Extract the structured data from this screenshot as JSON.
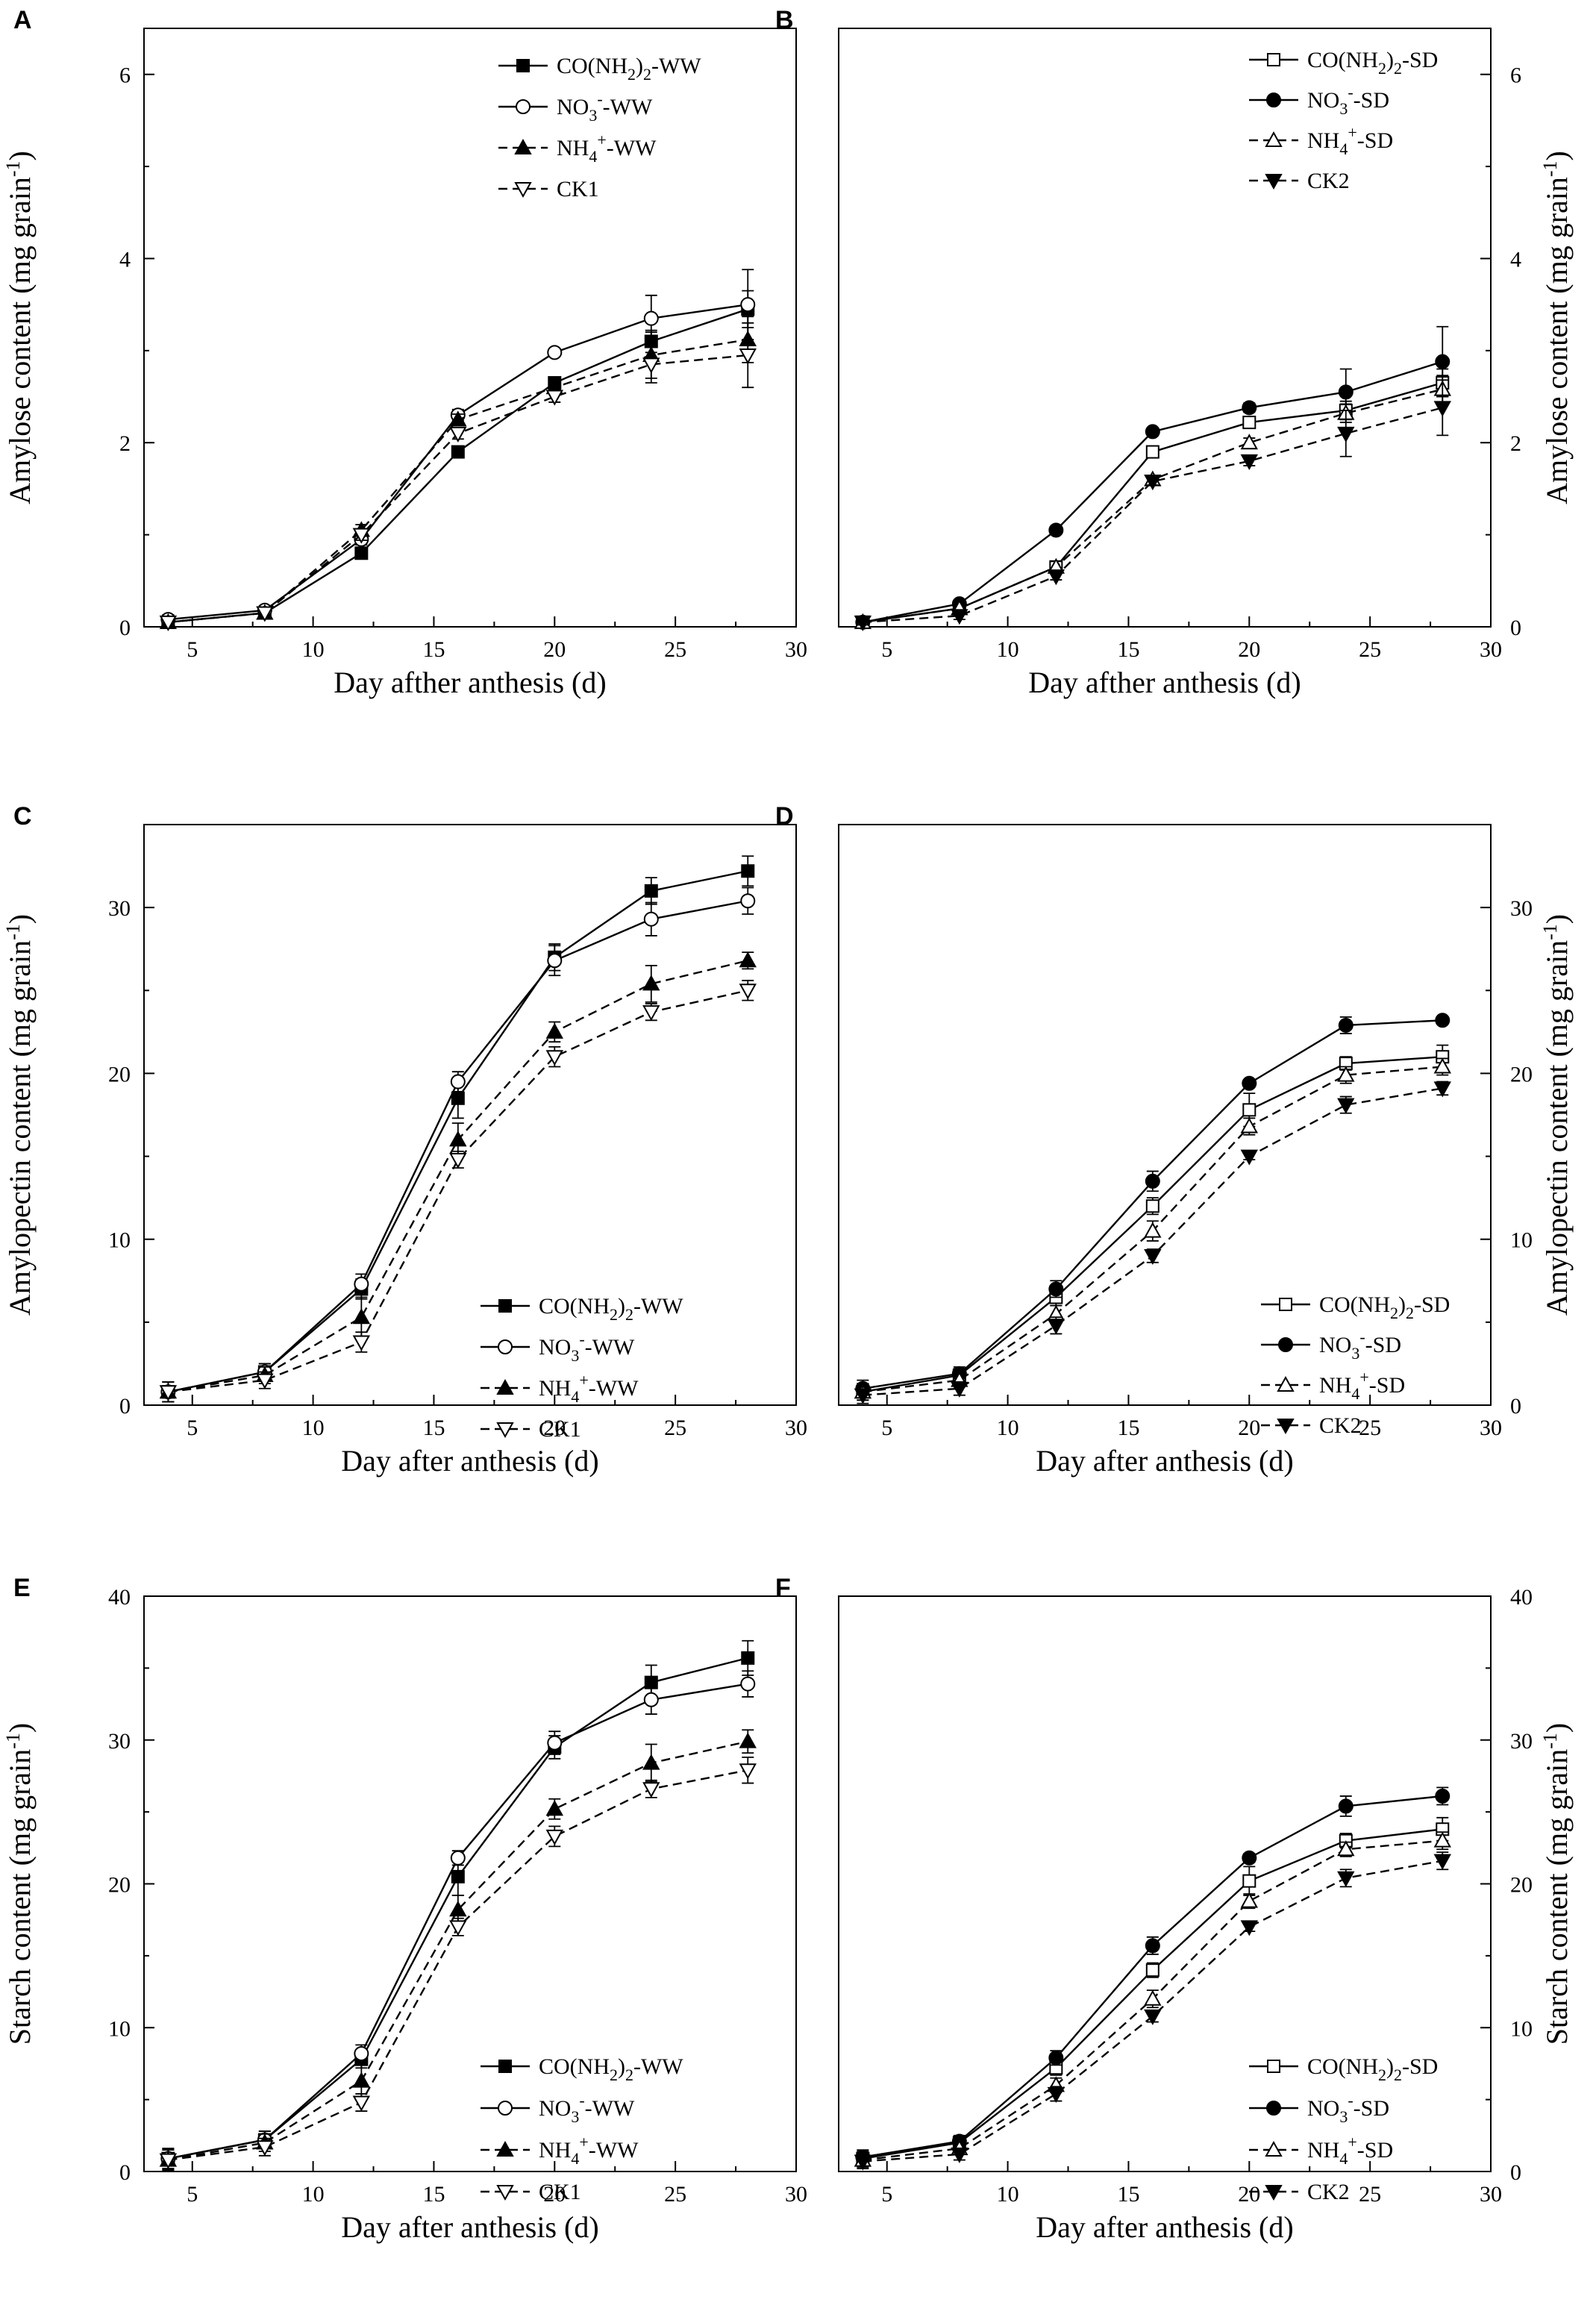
{
  "figure": {
    "background": "#ffffff",
    "ink": "#000000"
  },
  "chart_data": [
    {
      "panel": "A",
      "type": "line",
      "xlabel": "Day afther anthesis (d)",
      "ylabel": "Amylose content (mg grain",
      "ylabel_sup": "-1",
      "ylabel_tail": ")",
      "yaxis_side": "left",
      "xlim": [
        3,
        30
      ],
      "ylim": [
        0,
        6.5
      ],
      "xticks": [
        "5",
        "10",
        "15",
        "20",
        "25",
        "30"
      ],
      "yticks": [
        "0",
        "2",
        "4",
        "6"
      ],
      "legend_position": "top-right",
      "x": [
        4,
        8,
        12,
        16,
        20,
        24,
        28
      ],
      "series": [
        {
          "label_parts": [
            "CO(NH",
            {
              "sub": "2"
            },
            ")",
            {
              "sub": "2"
            },
            "-WW"
          ],
          "marker": "square-filled",
          "line": "solid",
          "values": [
            0.05,
            0.15,
            0.8,
            1.9,
            2.65,
            3.1,
            3.45
          ],
          "errors": [
            0.04,
            0.05,
            0.05,
            0.05,
            0.06,
            0.12,
            0.2
          ]
        },
        {
          "label_parts": [
            "NO",
            {
              "sub": "3"
            },
            {
              "sup": "-"
            },
            "-WW"
          ],
          "marker": "circle-open",
          "line": "solid",
          "values": [
            0.08,
            0.18,
            0.95,
            2.3,
            2.98,
            3.35,
            3.5
          ],
          "errors": [
            0.05,
            0.05,
            0.06,
            0.06,
            0.04,
            0.25,
            0.38
          ]
        },
        {
          "label_parts": [
            "NH",
            {
              "sub": "4"
            },
            {
              "sup": "+"
            },
            "-WW"
          ],
          "marker": "triangle-up-filled",
          "line": "dashed",
          "values": [
            0.05,
            0.15,
            1.05,
            2.25,
            2.6,
            2.95,
            3.12
          ],
          "errors": [
            0.04,
            0.05,
            0.06,
            0.06,
            0.06,
            0.25,
            0.25
          ]
        },
        {
          "label_parts": [
            "CK1"
          ],
          "marker": "triangle-down-open",
          "line": "dashed",
          "values": [
            0.05,
            0.15,
            1.0,
            2.1,
            2.5,
            2.85,
            2.95
          ],
          "errors": [
            0.04,
            0.05,
            0.06,
            0.06,
            0.06,
            0.2,
            0.35
          ]
        }
      ]
    },
    {
      "panel": "B",
      "type": "line",
      "xlabel": "Day afther anthesis (d)",
      "ylabel": "Amylose content (mg grain",
      "ylabel_sup": "-1",
      "ylabel_tail": ")",
      "yaxis_side": "right",
      "xlim": [
        3,
        30
      ],
      "ylim": [
        0,
        6.5
      ],
      "xticks": [
        "5",
        "10",
        "15",
        "20",
        "25",
        "30"
      ],
      "yticks": [
        "0",
        "2",
        "4",
        "6"
      ],
      "legend_position": "top-right",
      "x": [
        4,
        8,
        12,
        16,
        20,
        24,
        28
      ],
      "series": [
        {
          "label_parts": [
            "CO(NH",
            {
              "sub": "2"
            },
            ")",
            {
              "sub": "2"
            },
            "-SD"
          ],
          "marker": "square-open",
          "line": "solid",
          "values": [
            0.05,
            0.2,
            0.65,
            1.9,
            2.22,
            2.35,
            2.65
          ],
          "errors": [
            0.03,
            0.04,
            0.06,
            0.04,
            0.05,
            0.1,
            0.15
          ]
        },
        {
          "label_parts": [
            "NO",
            {
              "sub": "3"
            },
            {
              "sup": "-"
            },
            "-SD"
          ],
          "marker": "circle-filled",
          "line": "solid",
          "values": [
            0.05,
            0.25,
            1.05,
            2.12,
            2.38,
            2.55,
            2.88
          ],
          "errors": [
            0.03,
            0.04,
            0.04,
            0.04,
            0.05,
            0.25,
            0.38
          ]
        },
        {
          "label_parts": [
            "NH",
            {
              "sub": "4"
            },
            {
              "sup": "+"
            },
            "-SD"
          ],
          "marker": "triangle-up-open",
          "line": "dashed",
          "values": [
            0.05,
            0.2,
            0.65,
            1.6,
            2.0,
            2.32,
            2.58
          ],
          "errors": [
            0.03,
            0.04,
            0.06,
            0.04,
            0.05,
            0.1,
            0.15
          ]
        },
        {
          "label_parts": [
            "CK2"
          ],
          "marker": "triangle-down-filled",
          "line": "dashed",
          "values": [
            0.05,
            0.12,
            0.55,
            1.58,
            1.8,
            2.1,
            2.38
          ],
          "errors": [
            0.03,
            0.04,
            0.04,
            0.04,
            0.05,
            0.25,
            0.3
          ]
        }
      ]
    },
    {
      "panel": "C",
      "type": "line",
      "xlabel": "Day after anthesis (d)",
      "ylabel": "Amylopectin content (mg grain",
      "ylabel_sup": "-1",
      "ylabel_tail": ")",
      "yaxis_side": "left",
      "xlim": [
        3,
        30
      ],
      "ylim": [
        0,
        35
      ],
      "xticks": [
        "5",
        "10",
        "15",
        "20",
        "25",
        "30"
      ],
      "yticks": [
        "0",
        "10",
        "20",
        "30"
      ],
      "legend_position": "bottom-right",
      "x": [
        4,
        8,
        12,
        16,
        20,
        24,
        28
      ],
      "series": [
        {
          "label_parts": [
            "CO(NH",
            {
              "sub": "2"
            },
            ")",
            {
              "sub": "2"
            },
            "-WW"
          ],
          "marker": "square-filled",
          "line": "solid",
          "values": [
            0.8,
            2.0,
            7.0,
            18.5,
            27.0,
            31.0,
            32.2
          ],
          "errors": [
            0.6,
            0.5,
            0.6,
            1.2,
            0.8,
            0.8,
            0.9
          ]
        },
        {
          "label_parts": [
            "NO",
            {
              "sub": "3"
            },
            {
              "sup": "-"
            },
            "-WW"
          ],
          "marker": "circle-open",
          "line": "solid",
          "values": [
            0.8,
            2.0,
            7.3,
            19.5,
            26.8,
            29.3,
            30.4
          ],
          "errors": [
            0.6,
            0.5,
            0.6,
            0.6,
            0.9,
            1.0,
            0.8
          ]
        },
        {
          "label_parts": [
            "NH",
            {
              "sub": "4"
            },
            {
              "sup": "+"
            },
            "-WW"
          ],
          "marker": "triangle-up-filled",
          "line": "dashed",
          "values": [
            0.8,
            1.8,
            5.3,
            16.0,
            22.5,
            25.4,
            26.8
          ],
          "errors": [
            0.6,
            0.5,
            1.2,
            1.0,
            0.6,
            1.1,
            0.5
          ]
        },
        {
          "label_parts": [
            "CK1"
          ],
          "marker": "triangle-down-open",
          "line": "dashed",
          "values": [
            0.8,
            1.5,
            3.8,
            14.8,
            21.0,
            23.7,
            25.0
          ],
          "errors": [
            0.6,
            0.5,
            0.6,
            0.5,
            0.6,
            0.5,
            0.6
          ]
        }
      ]
    },
    {
      "panel": "D",
      "type": "line",
      "xlabel": "Day after anthesis (d)",
      "ylabel": "Amylopectin content (mg grain",
      "ylabel_sup": "-1",
      "ylabel_tail": ")",
      "yaxis_side": "right",
      "xlim": [
        3,
        30
      ],
      "ylim": [
        0,
        35
      ],
      "xticks": [
        "5",
        "10",
        "15",
        "20",
        "25",
        "30"
      ],
      "yticks": [
        "0",
        "10",
        "20",
        "30"
      ],
      "legend_position": "bottom-right",
      "x": [
        4,
        8,
        12,
        16,
        20,
        24,
        28
      ],
      "series": [
        {
          "label_parts": [
            "CO(NH",
            {
              "sub": "2"
            },
            ")",
            {
              "sub": "2"
            },
            "-SD"
          ],
          "marker": "square-open",
          "line": "solid",
          "values": [
            0.8,
            1.8,
            6.5,
            12.0,
            17.8,
            20.6,
            21.0
          ],
          "errors": [
            0.5,
            0.4,
            0.5,
            0.5,
            1.0,
            0.4,
            0.7
          ]
        },
        {
          "label_parts": [
            "NO",
            {
              "sub": "3"
            },
            {
              "sup": "-"
            },
            "-SD"
          ],
          "marker": "circle-filled",
          "line": "solid",
          "values": [
            1.0,
            1.9,
            7.0,
            13.5,
            19.4,
            22.9,
            23.2
          ],
          "errors": [
            0.5,
            0.4,
            0.5,
            0.6,
            0.2,
            0.5,
            0.2
          ]
        },
        {
          "label_parts": [
            "NH",
            {
              "sub": "4"
            },
            {
              "sup": "+"
            },
            "-SD"
          ],
          "marker": "triangle-up-open",
          "line": "dashed",
          "values": [
            0.8,
            1.5,
            5.5,
            10.5,
            16.8,
            19.9,
            20.4
          ],
          "errors": [
            0.5,
            0.4,
            0.5,
            0.6,
            0.5,
            0.5,
            0.5
          ]
        },
        {
          "label_parts": [
            "CK2"
          ],
          "marker": "triangle-down-filled",
          "line": "dashed",
          "values": [
            0.6,
            1.0,
            4.8,
            9.0,
            15.0,
            18.1,
            19.1
          ],
          "errors": [
            0.5,
            0.4,
            0.5,
            0.4,
            0.2,
            0.5,
            0.4
          ]
        }
      ]
    },
    {
      "panel": "E",
      "type": "line",
      "xlabel": "Day after anthesis (d)",
      "ylabel": "Starch content (mg grain",
      "ylabel_sup": "-1",
      "ylabel_tail": ")",
      "yaxis_side": "left",
      "xlim": [
        3,
        30
      ],
      "ylim": [
        0,
        40
      ],
      "xticks": [
        "5",
        "10",
        "15",
        "20",
        "25",
        "30"
      ],
      "yticks": [
        "0",
        "10",
        "20",
        "30",
        "40"
      ],
      "legend_position": "bottom-right",
      "x": [
        4,
        8,
        12,
        16,
        20,
        24,
        28
      ],
      "series": [
        {
          "label_parts": [
            "CO(NH",
            {
              "sub": "2"
            },
            ")",
            {
              "sub": "2"
            },
            "-WW"
          ],
          "marker": "square-filled",
          "line": "solid",
          "values": [
            0.9,
            2.2,
            7.8,
            20.5,
            29.5,
            34.0,
            35.7
          ],
          "errors": [
            0.7,
            0.6,
            0.6,
            1.3,
            0.8,
            1.2,
            1.2
          ]
        },
        {
          "label_parts": [
            "NO",
            {
              "sub": "3"
            },
            {
              "sup": "-"
            },
            "-WW"
          ],
          "marker": "circle-open",
          "line": "solid",
          "values": [
            0.9,
            2.2,
            8.2,
            21.8,
            29.8,
            32.8,
            33.9
          ],
          "errors": [
            0.7,
            0.6,
            0.6,
            0.5,
            0.8,
            1.0,
            0.9
          ]
        },
        {
          "label_parts": [
            "NH",
            {
              "sub": "4"
            },
            {
              "sup": "+"
            },
            "-WW"
          ],
          "marker": "triangle-up-filled",
          "line": "dashed",
          "values": [
            0.8,
            2.0,
            6.3,
            18.2,
            25.2,
            28.4,
            29.9
          ],
          "errors": [
            0.7,
            0.6,
            1.2,
            1.0,
            0.7,
            1.3,
            0.8
          ]
        },
        {
          "label_parts": [
            "CK1"
          ],
          "marker": "triangle-down-open",
          "line": "dashed",
          "values": [
            0.8,
            1.7,
            4.8,
            17.0,
            23.3,
            26.6,
            27.9
          ],
          "errors": [
            0.7,
            0.6,
            0.6,
            0.6,
            0.7,
            0.6,
            0.9
          ]
        }
      ]
    },
    {
      "panel": "F",
      "type": "line",
      "xlabel": "Day after anthesis (d)",
      "ylabel": "Starch content (mg grain",
      "ylabel_sup": "-1",
      "ylabel_tail": ")",
      "yaxis_side": "right",
      "xlim": [
        3,
        30
      ],
      "ylim": [
        0,
        40
      ],
      "xticks": [
        "5",
        "10",
        "15",
        "20",
        "25",
        "30"
      ],
      "yticks": [
        "0",
        "10",
        "20",
        "30",
        "40"
      ],
      "legend_position": "bottom-right",
      "x": [
        4,
        8,
        12,
        16,
        20,
        24,
        28
      ],
      "series": [
        {
          "label_parts": [
            "CO(NH",
            {
              "sub": "2"
            },
            ")",
            {
              "sub": "2"
            },
            "-SD"
          ],
          "marker": "square-open",
          "line": "solid",
          "values": [
            0.9,
            2.0,
            7.2,
            14.0,
            20.2,
            23.0,
            23.8
          ],
          "errors": [
            0.5,
            0.4,
            0.5,
            0.5,
            1.0,
            0.5,
            0.8
          ]
        },
        {
          "label_parts": [
            "NO",
            {
              "sub": "3"
            },
            {
              "sup": "-"
            },
            "-SD"
          ],
          "marker": "circle-filled",
          "line": "solid",
          "values": [
            1.0,
            2.1,
            7.9,
            15.7,
            21.8,
            25.4,
            26.1
          ],
          "errors": [
            0.5,
            0.4,
            0.5,
            0.6,
            0.3,
            0.7,
            0.6
          ]
        },
        {
          "label_parts": [
            "NH",
            {
              "sub": "4"
            },
            {
              "sup": "+"
            },
            "-SD"
          ],
          "marker": "triangle-up-open",
          "line": "dashed",
          "values": [
            0.8,
            1.6,
            6.0,
            12.0,
            18.8,
            22.4,
            23.0
          ],
          "errors": [
            0.5,
            0.4,
            0.5,
            0.6,
            0.5,
            0.5,
            0.6
          ]
        },
        {
          "label_parts": [
            "CK2"
          ],
          "marker": "triangle-down-filled",
          "line": "dashed",
          "values": [
            0.7,
            1.2,
            5.4,
            10.8,
            17.0,
            20.4,
            21.6
          ],
          "errors": [
            0.5,
            0.4,
            0.5,
            0.4,
            0.3,
            0.6,
            0.6
          ]
        }
      ]
    }
  ]
}
